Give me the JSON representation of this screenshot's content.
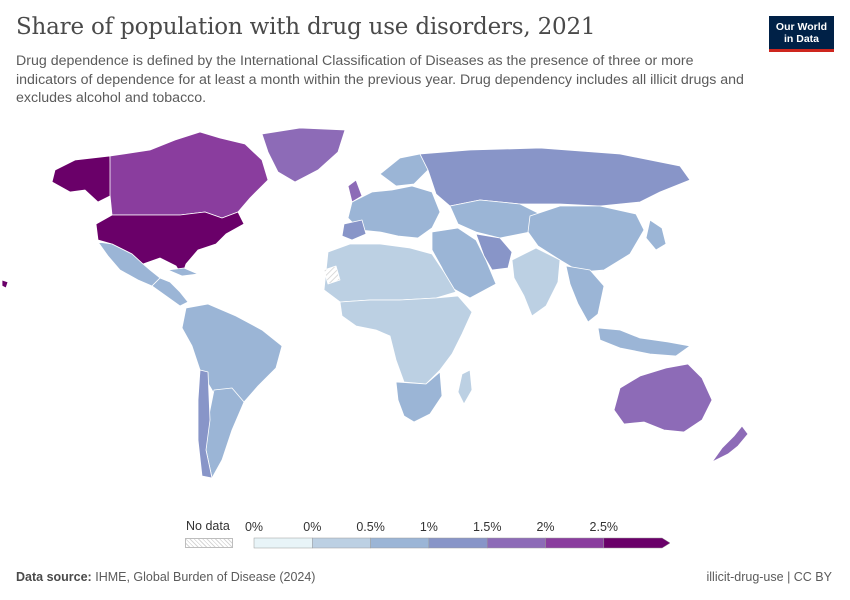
{
  "header": {
    "title": "Share of population with drug use disorders, 2021",
    "subtitle": "Drug dependence is defined by the International Classification of Diseases as the presence of three or more indicators of dependence for at least a month within the previous year. Drug dependency includes all illicit drugs and excludes alcohol and tobacco."
  },
  "logo": {
    "line1": "Our World",
    "line2": "in Data"
  },
  "colors": {
    "nodata_hatch": "#d6d6d6",
    "bins": [
      "#e8f4f8",
      "#bcd0e3",
      "#9bb5d6",
      "#8895c8",
      "#8d6bb7",
      "#8a3d9e",
      "#6a0069"
    ],
    "border": "#ffffff"
  },
  "legend": {
    "nodata_label": "No data",
    "ticks": [
      "0%",
      "0%",
      "0.5%",
      "1%",
      "1.5%",
      "2%",
      "2.5%"
    ]
  },
  "map_regions": [
    {
      "name": "United States",
      "level": 6
    },
    {
      "name": "Alaska",
      "level": 6
    },
    {
      "name": "Canada",
      "level": 5
    },
    {
      "name": "Greenland",
      "level": 4
    },
    {
      "name": "Mexico",
      "level": 2
    },
    {
      "name": "Central America",
      "level": 2
    },
    {
      "name": "Cuba",
      "level": 2
    },
    {
      "name": "South America",
      "level": 2
    },
    {
      "name": "Chile",
      "level": 3
    },
    {
      "name": "Argentina",
      "level": 2
    },
    {
      "name": "Europe",
      "level": 2
    },
    {
      "name": "United Kingdom",
      "level": 4
    },
    {
      "name": "Spain",
      "level": 3
    },
    {
      "name": "Scandinavia",
      "level": 2
    },
    {
      "name": "Russia",
      "level": 3
    },
    {
      "name": "Middle East",
      "level": 2
    },
    {
      "name": "Central Asia",
      "level": 2
    },
    {
      "name": "Iran",
      "level": 3
    },
    {
      "name": "China",
      "level": 2
    },
    {
      "name": "India",
      "level": 1
    },
    {
      "name": "Southeast Asia",
      "level": 2
    },
    {
      "name": "Japan",
      "level": 2
    },
    {
      "name": "Indonesia",
      "level": 2
    },
    {
      "name": "North Africa",
      "level": 1
    },
    {
      "name": "Sub-Saharan Africa",
      "level": 1
    },
    {
      "name": "Southern Africa",
      "level": 2
    },
    {
      "name": "Madagascar",
      "level": 1
    },
    {
      "name": "Australia",
      "level": 4
    },
    {
      "name": "New Zealand",
      "level": 4
    },
    {
      "name": "Western Sahara",
      "level": -1
    }
  ],
  "footer": {
    "source_label": "Data source:",
    "source_text": "IHME, Global Burden of Disease (2024)",
    "slug": "illicit-drug-use | CC BY"
  }
}
